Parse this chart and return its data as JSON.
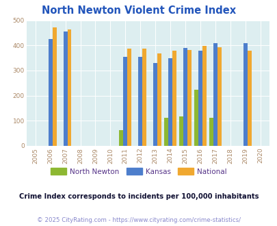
{
  "title": "North Newton Violent Crime Index",
  "years": [
    2005,
    2006,
    2007,
    2008,
    2009,
    2010,
    2011,
    2012,
    2013,
    2014,
    2015,
    2016,
    2017,
    2018,
    2019,
    2020
  ],
  "north_newton": {
    "2011": 63,
    "2014": 112,
    "2015": 117,
    "2016": 223,
    "2017": 112
  },
  "kansas": {
    "2006": 425,
    "2007": 455,
    "2011": 355,
    "2012": 355,
    "2013": 329,
    "2014": 350,
    "2015": 390,
    "2016": 380,
    "2017": 410,
    "2019": 410
  },
  "national": {
    "2006": 472,
    "2007": 465,
    "2011": 388,
    "2012": 388,
    "2013": 367,
    "2014": 379,
    "2015": 383,
    "2016": 397,
    "2017": 394,
    "2019": 380
  },
  "color_north_newton": "#8db832",
  "color_kansas": "#4d7ecc",
  "color_national": "#f0a830",
  "bg_color": "#ddeef0",
  "ylim": [
    0,
    500
  ],
  "yticks": [
    0,
    100,
    200,
    300,
    400,
    500
  ],
  "bar_width": 0.27,
  "title_color": "#2255bb",
  "legend_label_color": "#553388",
  "footer_text": "Crime Index corresponds to incidents per 100,000 inhabitants",
  "copyright_text": "© 2025 CityRating.com - https://www.cityrating.com/crime-statistics/",
  "footer_color": "#111133",
  "copyright_color": "#8888cc",
  "tick_color": "#aa8866",
  "grid_color": "#ffffff"
}
